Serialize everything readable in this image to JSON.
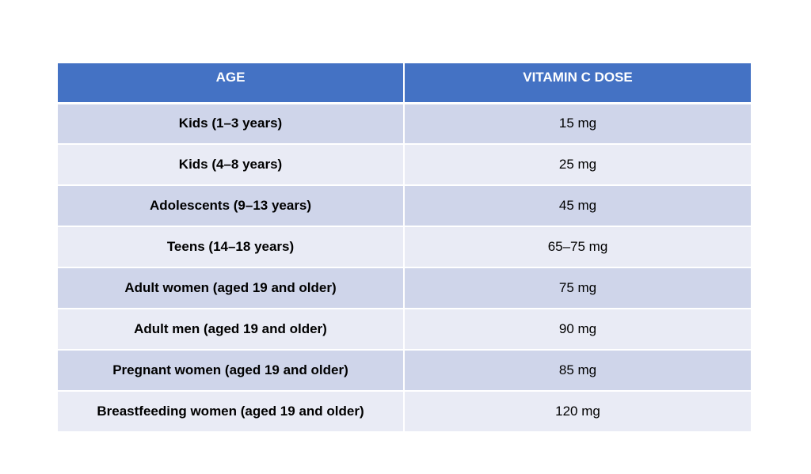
{
  "table": {
    "headers": [
      "AGE",
      "VITAMIN C DOSE"
    ],
    "rows": [
      {
        "age": "Kids (1–3 years)",
        "dose": "15 mg"
      },
      {
        "age": "Kids (4–8 years)",
        "dose": "25 mg"
      },
      {
        "age": "Adolescents (9–13 years)",
        "dose": "45 mg"
      },
      {
        "age": "Teens (14–18 years)",
        "dose": "65–75 mg"
      },
      {
        "age": "Adult women (aged 19 and older)",
        "dose": "75 mg"
      },
      {
        "age": "Adult men (aged 19 and older)",
        "dose": "90 mg"
      },
      {
        "age": "Pregnant women (aged 19 and older)",
        "dose": "85 mg"
      },
      {
        "age": "Breastfeeding women (aged 19 and older)",
        "dose": "120 mg"
      }
    ]
  },
  "colors": {
    "header_bg": "#4472c4",
    "row_dark": "#cfd5ea",
    "row_light": "#e9ebf5"
  }
}
